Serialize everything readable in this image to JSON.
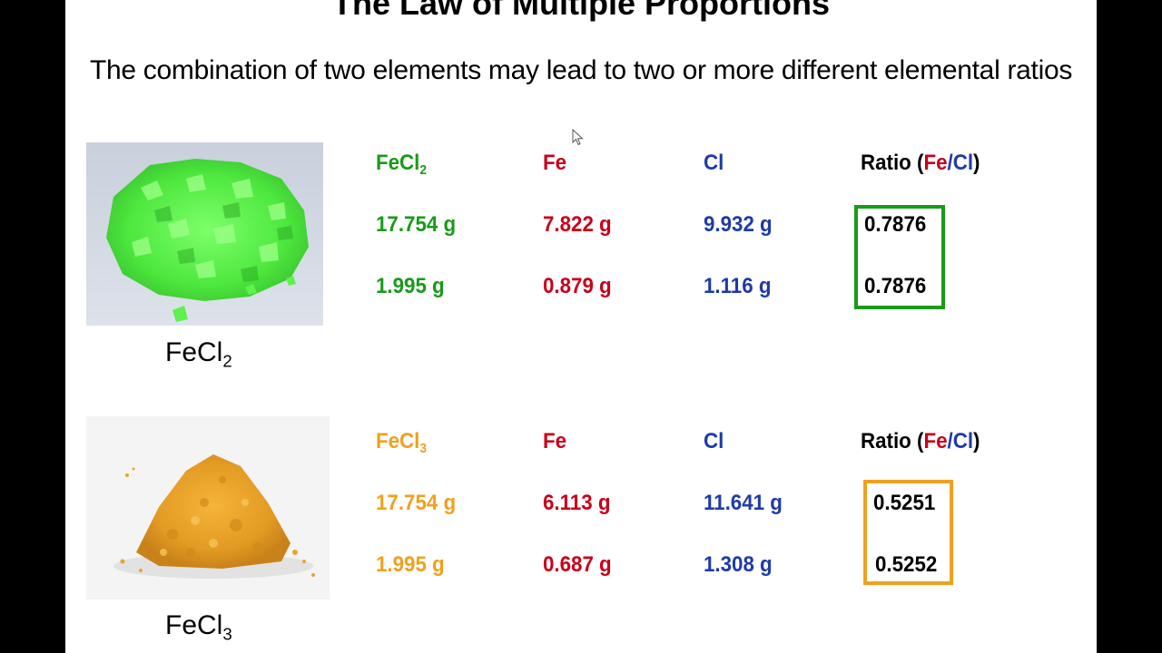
{
  "title": "The Law of Multiple Proportions",
  "subtitle": "The combination of two elements may lead to two or more different elemental ratios",
  "compound1": {
    "caption_base": "FeCl",
    "caption_sub": "2",
    "header_compound_base": "FeCl",
    "header_compound_sub": "2",
    "header_fe": "Fe",
    "header_cl": "Cl",
    "header_ratio_prefix": "Ratio (",
    "header_ratio_fe": "Fe",
    "header_ratio_slash": "/",
    "header_ratio_cl": "Cl",
    "header_ratio_suffix": ")",
    "rows": [
      {
        "compound": "17.754 g",
        "fe": "7.822 g",
        "cl": "9.932 g",
        "ratio": "0.7876"
      },
      {
        "compound": "1.995 g",
        "fe": "0.879 g",
        "cl": "1.116 g",
        "ratio": "0.7876"
      }
    ]
  },
  "compound2": {
    "caption_base": "FeCl",
    "caption_sub": "3",
    "header_compound_base": "FeCl",
    "header_compound_sub": "3",
    "header_fe": "Fe",
    "header_cl": "Cl",
    "header_ratio_prefix": "Ratio (",
    "header_ratio_fe": "Fe",
    "header_ratio_slash": "/",
    "header_ratio_cl": "Cl",
    "header_ratio_suffix": ")",
    "rows": [
      {
        "compound": "17.754 g",
        "fe": "6.113 g",
        "cl": "11.641 g",
        "ratio": "0.5251"
      },
      {
        "compound": "1.995 g",
        "fe": "0.687 g",
        "cl": "1.308 g",
        "ratio": "0.5252"
      }
    ]
  },
  "colors": {
    "fecl2": "#1a9a1a",
    "fecl3": "#f0a020",
    "fe": "#c8001a",
    "cl": "#1f3aa8"
  },
  "icons": {
    "cursor": "mouse-pointer-icon",
    "photo1": "green-crystals-photo",
    "photo2": "orange-powder-photo"
  }
}
